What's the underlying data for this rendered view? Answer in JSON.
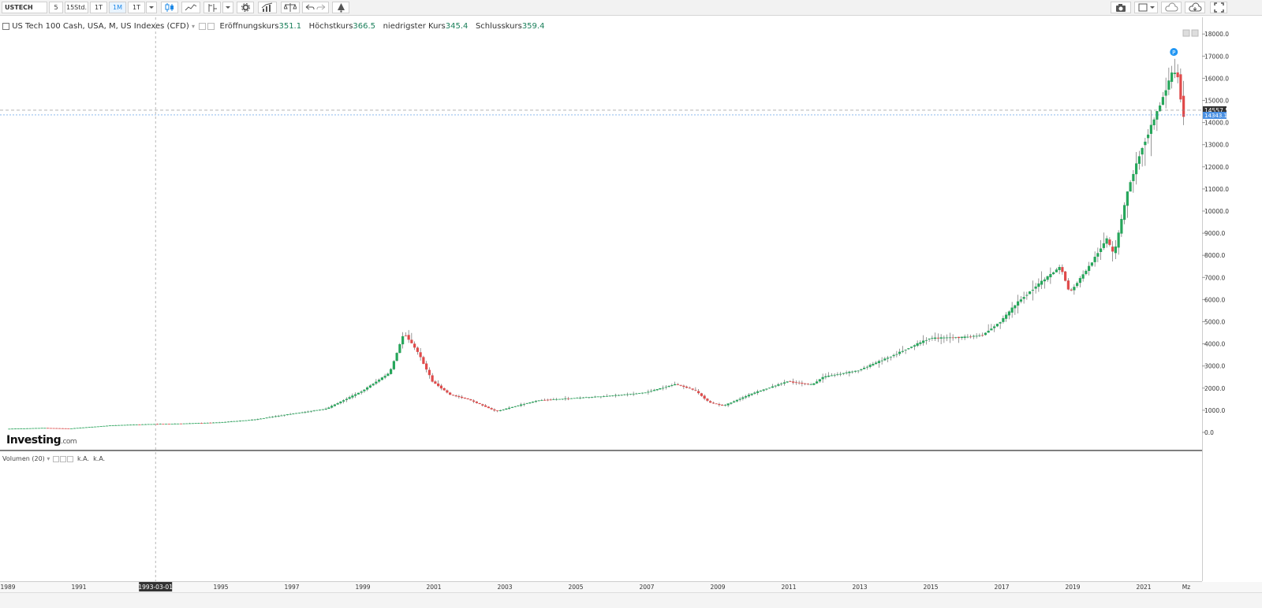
{
  "toolbar": {
    "symbol": "USTECH",
    "intervals": [
      "5",
      "15Std.",
      "1T",
      "1M",
      "1T"
    ],
    "active_interval": "1M"
  },
  "legend": {
    "instrument": "US Tech 100 Cash, USA, M, US Indexes (CFD)",
    "open_label": "Eröffnungskurs",
    "open_value": "351.1",
    "high_label": "Höchstkurs",
    "high_value": "366.5",
    "low_label": "niedrigster Kurs",
    "low_value": "345.4",
    "close_label": "Schlusskurs",
    "close_value": "359.4"
  },
  "volume_panel": {
    "label": "Volumen (20)",
    "values": [
      "k.A.",
      "k.A."
    ]
  },
  "logo": {
    "brand": "Investing",
    "suffix": ".com"
  },
  "colors": {
    "up": "#26a65b",
    "down": "#e04a4a",
    "price_line": "#4a90e2",
    "crosshair": "#999999",
    "marker": "#2196f3"
  },
  "chart_data": {
    "type": "candlestick",
    "instrument": "US Tech 100 Cash, USA, M, US Indexes (CFD)",
    "xlim": [
      1989,
      2022.55
    ],
    "ylim": [
      -1000,
      18500
    ],
    "x_ticks": [
      "1989",
      "1991",
      "1993-03-01",
      "1995",
      "1997",
      "1999",
      "2001",
      "2003",
      "2005",
      "2007",
      "2009",
      "2011",
      "2013",
      "2015",
      "2017",
      "2019",
      "2021",
      "Mz"
    ],
    "y_ticks": [
      "0.0",
      "1000.0",
      "2000.0",
      "3000.0",
      "4000.0",
      "5000.0",
      "6000.0",
      "7000.0",
      "8000.0",
      "9000.0",
      "10000.0",
      "11000.0",
      "12000.0",
      "13000.0",
      "14000.0",
      "15000.0",
      "16000.0",
      "17000.0",
      "18000.0"
    ],
    "crosshair_x_label": "1993-03-01",
    "current_price_labels": [
      "14557.5",
      "14343.1"
    ],
    "current_price": 14343.1,
    "crosshair_price": 14557.5,
    "annual_levels": [
      [
        1989,
        160
      ],
      [
        1990,
        200
      ],
      [
        1990.8,
        175
      ],
      [
        1991,
        200
      ],
      [
        1992,
        320
      ],
      [
        1993,
        370
      ],
      [
        1994,
        400
      ],
      [
        1995,
        450
      ],
      [
        1996,
        580
      ],
      [
        1997,
        830
      ],
      [
        1998,
        1060
      ],
      [
        1999,
        1850
      ],
      [
        1999.8,
        2700
      ],
      [
        2000.2,
        4500
      ],
      [
        2000.6,
        3600
      ],
      [
        2001,
        2300
      ],
      [
        2001.5,
        1700
      ],
      [
        2002,
        1500
      ],
      [
        2002.8,
        950
      ],
      [
        2003.5,
        1250
      ],
      [
        2004,
        1450
      ],
      [
        2005,
        1550
      ],
      [
        2006,
        1650
      ],
      [
        2007,
        1800
      ],
      [
        2007.85,
        2180
      ],
      [
        2008.4,
        1900
      ],
      [
        2008.8,
        1350
      ],
      [
        2009.2,
        1200
      ],
      [
        2010,
        1750
      ],
      [
        2011,
        2300
      ],
      [
        2011.7,
        2150
      ],
      [
        2012,
        2500
      ],
      [
        2013,
        2800
      ],
      [
        2014,
        3500
      ],
      [
        2015,
        4250
      ],
      [
        2016,
        4300
      ],
      [
        2016.5,
        4400
      ],
      [
        2017,
        5000
      ],
      [
        2017.5,
        5900
      ],
      [
        2018,
        6600
      ],
      [
        2018.7,
        7500
      ],
      [
        2018.95,
        6300
      ],
      [
        2019.5,
        7500
      ],
      [
        2020,
        8750
      ],
      [
        2020.2,
        8000
      ],
      [
        2020.6,
        11000
      ],
      [
        2021,
        12900
      ],
      [
        2021.5,
        14800
      ],
      [
        2021.85,
        16300
      ],
      [
        2022.0,
        16100
      ],
      [
        2022.15,
        14343
      ]
    ]
  }
}
